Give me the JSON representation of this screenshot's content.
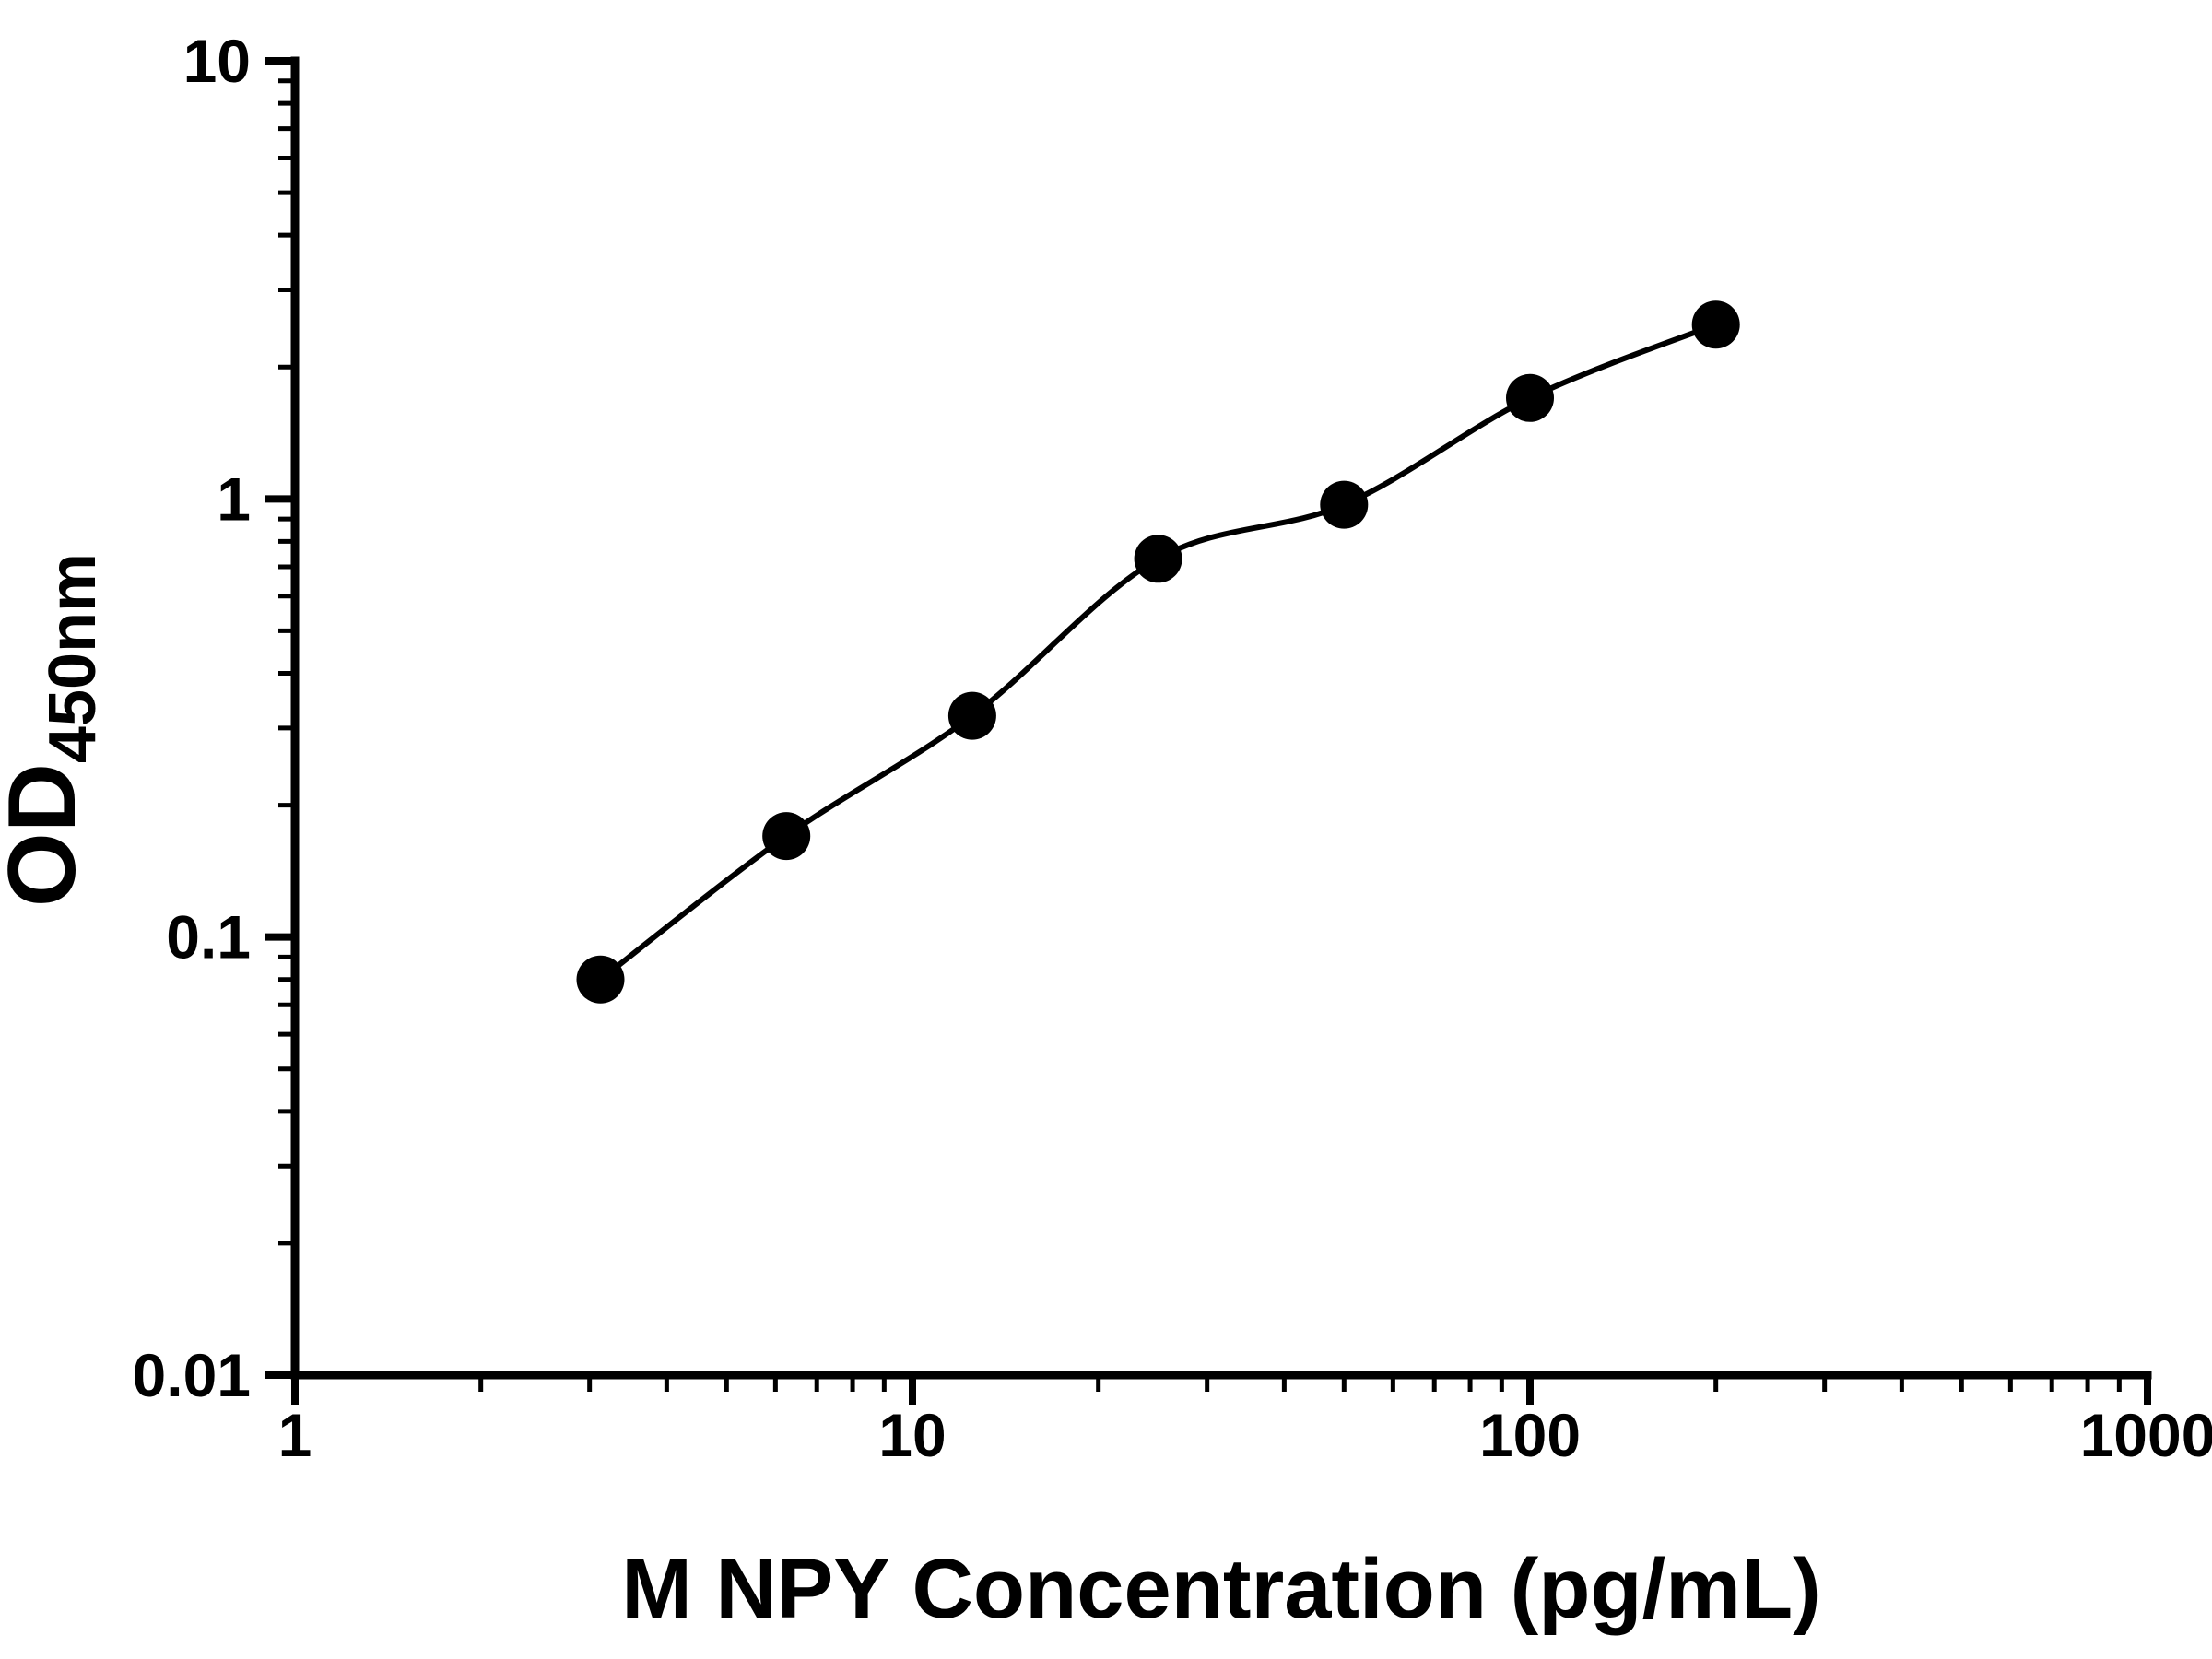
{
  "chart_data": {
    "type": "scatter",
    "title": "",
    "xlabel": "M NPY Concentration (pg/mL)",
    "ylabel": "OD450nm",
    "ylabel_main": "OD",
    "ylabel_sub": "450nm",
    "x_scale": "log",
    "y_scale": "log",
    "xlim": [
      1,
      1000
    ],
    "ylim": [
      0.01,
      10
    ],
    "x_ticks": [
      1,
      10,
      100,
      1000
    ],
    "x_tick_labels": [
      "1",
      "10",
      "100",
      "1000"
    ],
    "y_ticks": [
      0.01,
      0.1,
      1,
      10
    ],
    "y_tick_labels": [
      "0.01",
      "0.1",
      "1",
      "10"
    ],
    "grid": "off",
    "legend": "none",
    "marker_color": "#000000",
    "line_color": "#000000",
    "series": [
      {
        "x": [
          3.125,
          6.25,
          12.5,
          25,
          50,
          100,
          200
        ],
        "y": [
          0.08,
          0.17,
          0.32,
          0.73,
          0.97,
          1.7,
          2.5
        ]
      }
    ]
  }
}
